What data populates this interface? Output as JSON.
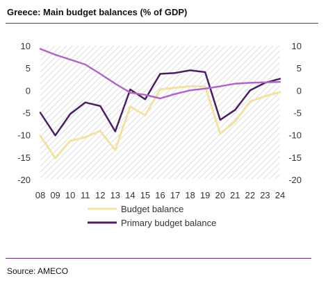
{
  "title": "Greece: Main budget balances (% of GDP)",
  "source": "Source: AMECO",
  "colors": {
    "budget_balance": "#f3e2a2",
    "primary_budget_balance": "#4b1f5e",
    "trend_line": "#b265c9",
    "rule": "#6b2a7b",
    "plot_hatch": "#dcdcdc"
  },
  "chart_data": {
    "type": "line",
    "title": "Greece: Main budget balances (% of GDP)",
    "x": [
      "08",
      "09",
      "10",
      "11",
      "12",
      "13",
      "14",
      "15",
      "16",
      "17",
      "18",
      "19",
      "20",
      "21",
      "22",
      "23",
      "24"
    ],
    "y_ticks": [
      10,
      5,
      0,
      -5,
      -10,
      -15,
      -20
    ],
    "ylim": [
      -20,
      10
    ],
    "secondary_y_ticks": [
      10,
      5,
      0,
      -5,
      -10,
      -15,
      -20
    ],
    "legend_position": "bottom-left",
    "grid": false,
    "series": [
      {
        "name": "Budget balance",
        "values": [
          -10.2,
          -15.2,
          -11.3,
          -10.5,
          -9.1,
          -13.4,
          -3.6,
          -5.6,
          0.2,
          0.6,
          0.9,
          0.9,
          -9.7,
          -7.0,
          -2.5,
          -1.3,
          -0.4
        ]
      },
      {
        "name": "Primary budget balance",
        "values": [
          -5.0,
          -10.1,
          -5.3,
          -2.7,
          -3.5,
          -9.2,
          0.2,
          -2.0,
          3.7,
          3.9,
          4.5,
          4.1,
          -6.6,
          -4.4,
          0.0,
          1.7,
          2.6
        ]
      },
      {
        "name": "",
        "values": [
          9.3,
          8.0,
          6.9,
          5.8,
          3.7,
          1.5,
          -0.5,
          -1.0,
          -1.8,
          -0.8,
          0.0,
          0.4,
          0.9,
          1.5,
          1.7,
          1.8,
          1.9
        ]
      }
    ]
  }
}
